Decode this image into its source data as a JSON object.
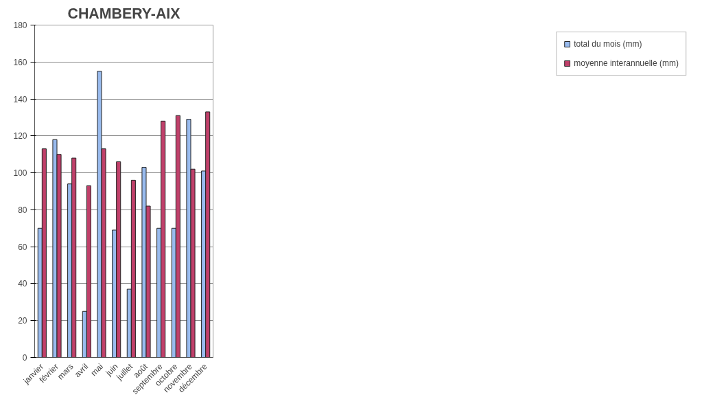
{
  "chart_data": {
    "type": "bar",
    "title": "CHAMBERY-AIX",
    "categories": [
      "janvier",
      "février",
      "mars",
      "avril",
      "mai",
      "juin",
      "juillet",
      "août",
      "septembre",
      "octobre",
      "novembre",
      "décembre"
    ],
    "series": [
      {
        "name": "total du mois (mm)",
        "color": "#99bbee",
        "values": [
          70,
          118,
          94,
          25,
          155,
          69,
          37,
          103,
          70,
          70,
          129,
          101
        ]
      },
      {
        "name": "moyenne interannuelle (mm)",
        "color": "#c0406a",
        "values": [
          113,
          110,
          108,
          93,
          113,
          106,
          96,
          82,
          128,
          131,
          102,
          133
        ]
      }
    ],
    "ylim": [
      0,
      180
    ],
    "yticks": [
      0,
      20,
      40,
      60,
      80,
      100,
      120,
      140,
      160,
      180
    ],
    "grid": "y",
    "legend": "right"
  }
}
